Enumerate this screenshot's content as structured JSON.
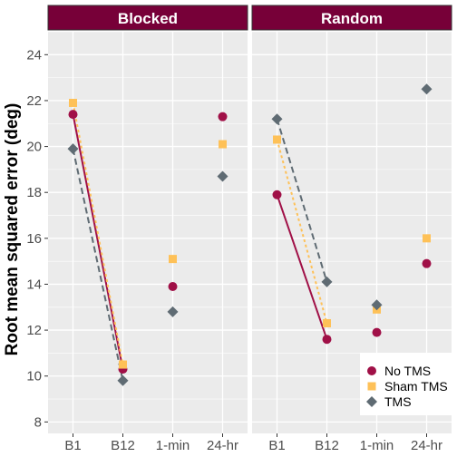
{
  "chart_data": {
    "type": "scatter",
    "ylabel": "Root mean squared error (deg)",
    "xlabel": "",
    "categories": [
      "B1",
      "B12",
      "1-min",
      "24-hr"
    ],
    "ylim": [
      7.5,
      25
    ],
    "yticks": [
      8,
      10,
      12,
      14,
      16,
      18,
      20,
      22,
      24
    ],
    "grid": true,
    "legend_position": "bottom-right",
    "connected_categories": [
      "B1",
      "B12"
    ],
    "panels": [
      {
        "title": "Blocked",
        "series": [
          {
            "name": "No TMS",
            "values": [
              21.4,
              10.3,
              13.9,
              21.3
            ]
          },
          {
            "name": "Sham TMS",
            "values": [
              21.9,
              10.5,
              15.1,
              20.1
            ]
          },
          {
            "name": "TMS",
            "values": [
              19.9,
              9.8,
              12.8,
              18.7
            ]
          }
        ]
      },
      {
        "title": "Random",
        "series": [
          {
            "name": "No TMS",
            "values": [
              17.9,
              11.6,
              11.9,
              14.9
            ]
          },
          {
            "name": "Sham TMS",
            "values": [
              20.3,
              12.3,
              12.9,
              16.0
            ]
          },
          {
            "name": "TMS",
            "values": [
              21.2,
              14.1,
              13.1,
              22.5
            ]
          }
        ]
      }
    ],
    "series_styles": [
      {
        "name": "No TMS",
        "color": "#a01047",
        "marker": "circle",
        "line": "solid"
      },
      {
        "name": "Sham TMS",
        "color": "#fec158",
        "marker": "square",
        "line": "dotted"
      },
      {
        "name": "TMS",
        "color": "#5f6b73",
        "marker": "diamond",
        "line": "dashed"
      }
    ],
    "colors": {
      "strip_fill": "#770038",
      "panel_bg": "#ebebeb",
      "grid": "#ffffff"
    }
  }
}
